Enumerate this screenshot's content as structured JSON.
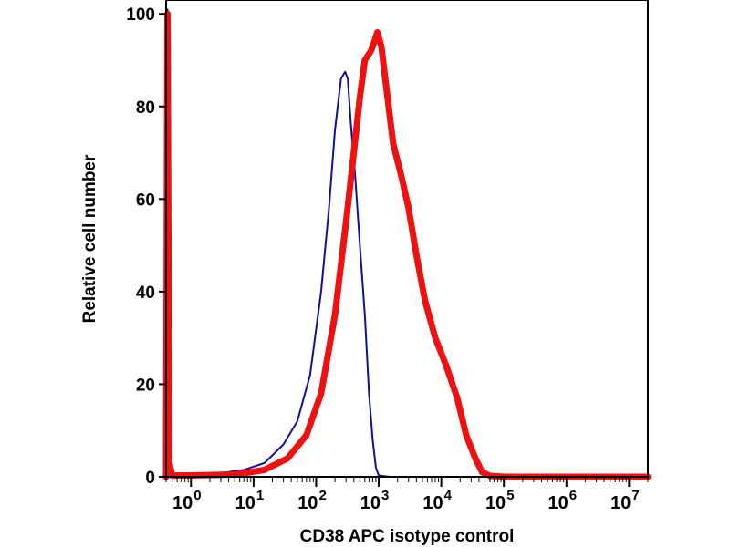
{
  "chart_data": {
    "type": "line",
    "title": "",
    "xlabel": "CD38 APC isotype control",
    "ylabel": "Relative cell number",
    "x_scale": "log",
    "xlim": [
      0.4,
      20000000
    ],
    "ylim": [
      0,
      103
    ],
    "grid": false,
    "y_ticks": [
      {
        "value": 0,
        "label": "0"
      },
      {
        "value": 20,
        "label": "20"
      },
      {
        "value": 40,
        "label": "40"
      },
      {
        "value": 60,
        "label": "60"
      },
      {
        "value": 80,
        "label": "80"
      },
      {
        "value": 100,
        "label": "100"
      }
    ],
    "x_ticks": [
      {
        "value": 1,
        "base": "10",
        "exp": "0"
      },
      {
        "value": 10,
        "base": "10",
        "exp": "1"
      },
      {
        "value": 100,
        "base": "10",
        "exp": "2"
      },
      {
        "value": 1000,
        "base": "10",
        "exp": "3"
      },
      {
        "value": 10000,
        "base": "10",
        "exp": "4"
      },
      {
        "value": 100000,
        "base": "10",
        "exp": "5"
      },
      {
        "value": 1000000,
        "base": "10",
        "exp": "6"
      },
      {
        "value": 10000000,
        "base": "10",
        "exp": "7"
      }
    ],
    "series": [
      {
        "color": "#1010a0",
        "points": [
          [
            0.4,
            0
          ],
          [
            0.42,
            101
          ],
          [
            0.45,
            3
          ],
          [
            0.5,
            0.5
          ],
          [
            1,
            0.5
          ],
          [
            3,
            0.8
          ],
          [
            7,
            1.5
          ],
          [
            15,
            3
          ],
          [
            30,
            7
          ],
          [
            50,
            12
          ],
          [
            80,
            22
          ],
          [
            120,
            40
          ],
          [
            160,
            58
          ],
          [
            200,
            75
          ],
          [
            250,
            86
          ],
          [
            290,
            87.5
          ],
          [
            320,
            86
          ],
          [
            360,
            76
          ],
          [
            420,
            65
          ],
          [
            500,
            50
          ],
          [
            600,
            35
          ],
          [
            700,
            18
          ],
          [
            800,
            8
          ],
          [
            900,
            2
          ],
          [
            1000,
            0.3
          ],
          [
            1500,
            0
          ],
          [
            20000000,
            0
          ]
        ]
      },
      {
        "color": "#ee1111",
        "points": [
          [
            0.4,
            0
          ],
          [
            0.42,
            100
          ],
          [
            0.45,
            3
          ],
          [
            0.5,
            0.3
          ],
          [
            1,
            0.3
          ],
          [
            5,
            0.5
          ],
          [
            15,
            1.5
          ],
          [
            35,
            4
          ],
          [
            70,
            9
          ],
          [
            120,
            18
          ],
          [
            200,
            35
          ],
          [
            300,
            55
          ],
          [
            400,
            70
          ],
          [
            500,
            82
          ],
          [
            600,
            90
          ],
          [
            750,
            92
          ],
          [
            850,
            94
          ],
          [
            950,
            96
          ],
          [
            1100,
            93
          ],
          [
            1300,
            85
          ],
          [
            1700,
            72
          ],
          [
            2300,
            65
          ],
          [
            3000,
            58
          ],
          [
            4000,
            48
          ],
          [
            5500,
            38
          ],
          [
            8000,
            30
          ],
          [
            12000,
            24
          ],
          [
            18000,
            17
          ],
          [
            25000,
            9
          ],
          [
            35000,
            4
          ],
          [
            45000,
            1
          ],
          [
            60000,
            0.2
          ],
          [
            100000,
            0
          ],
          [
            20000000,
            0
          ]
        ]
      }
    ]
  }
}
